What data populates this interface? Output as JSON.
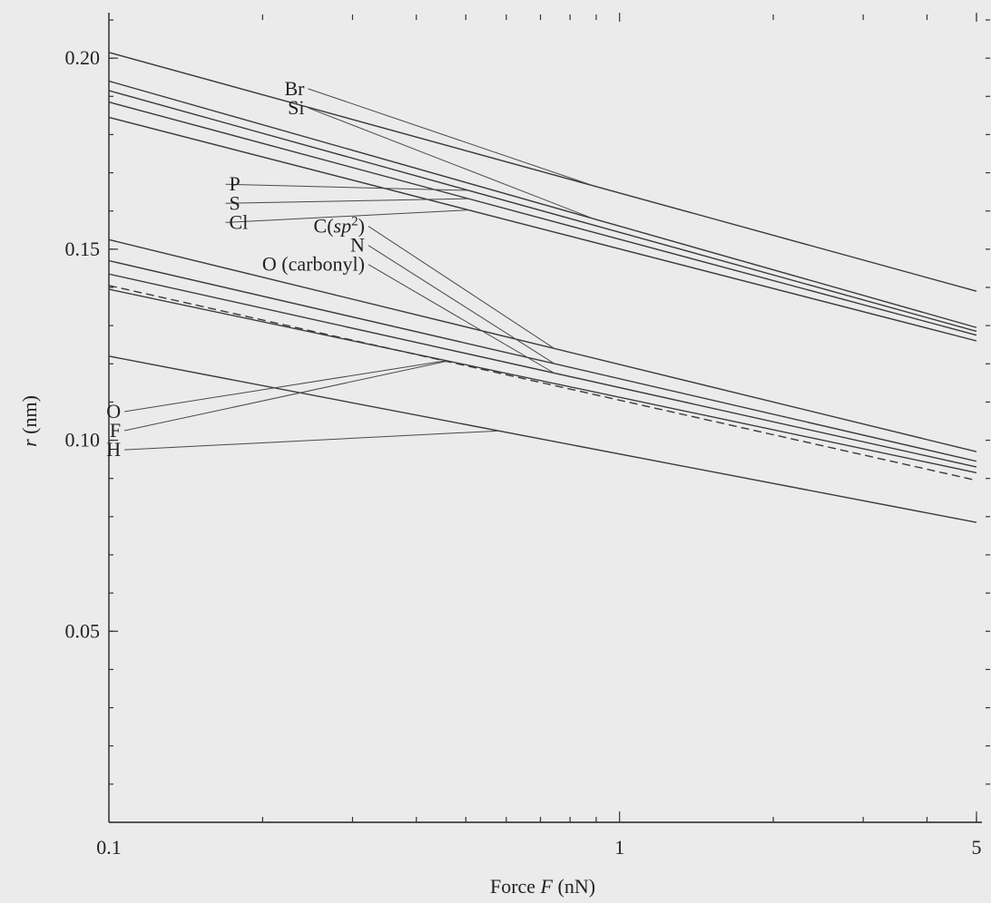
{
  "chart_data": {
    "type": "line",
    "x_scale": "log",
    "xlabel_parts": [
      "Force ",
      "F",
      " (nN)"
    ],
    "ylabel_parts": [
      "r",
      " (nm)"
    ],
    "xlim": [
      0.1,
      5
    ],
    "ylim": [
      0.0,
      0.21
    ],
    "x_ticks": [
      0.1,
      1,
      5
    ],
    "x_tick_labels": [
      "0.1",
      "1",
      "5"
    ],
    "y_ticks": [
      0.05,
      0.1,
      0.15,
      0.2
    ],
    "y_tick_labels": [
      "0.05",
      "0.10",
      "0.15",
      "0.20"
    ],
    "y_minor_step": 0.01,
    "grid": false,
    "legend": "none",
    "series": [
      {
        "name": "Br",
        "x": [
          0.1,
          5
        ],
        "values": [
          0.2015,
          0.139
        ],
        "style": "solid"
      },
      {
        "name": "Si",
        "x": [
          0.1,
          5
        ],
        "values": [
          0.194,
          0.1295
        ],
        "style": "solid"
      },
      {
        "name": "P",
        "x": [
          0.1,
          5
        ],
        "values": [
          0.1915,
          0.1285
        ],
        "style": "solid"
      },
      {
        "name": "S",
        "x": [
          0.1,
          5
        ],
        "values": [
          0.1885,
          0.1275
        ],
        "style": "solid"
      },
      {
        "name": "Cl",
        "x": [
          0.1,
          5
        ],
        "values": [
          0.1845,
          0.126
        ],
        "style": "solid"
      },
      {
        "name": "C(sp2)",
        "x": [
          0.1,
          5
        ],
        "values": [
          0.1525,
          0.097
        ],
        "style": "solid"
      },
      {
        "name": "N",
        "x": [
          0.1,
          5
        ],
        "values": [
          0.147,
          0.0945
        ],
        "style": "solid"
      },
      {
        "name": "O (carbonyl)",
        "x": [
          0.1,
          5
        ],
        "values": [
          0.1435,
          0.093
        ],
        "style": "solid"
      },
      {
        "name": "O",
        "x": [
          0.1,
          5
        ],
        "values": [
          0.1395,
          0.0915
        ],
        "style": "solid"
      },
      {
        "name": "F",
        "x": [
          0.1,
          5
        ],
        "values": [
          0.1405,
          0.0895
        ],
        "style": "dashed"
      },
      {
        "name": "H",
        "x": [
          0.1,
          5
        ],
        "values": [
          0.122,
          0.0785
        ],
        "style": "solid"
      }
    ],
    "annotations": [
      {
        "parts": [
          {
            "t": "Br"
          }
        ],
        "anchor": "end",
        "at": [
          0.2415,
          0.192
        ],
        "targets": [
          {
            "series": 0,
            "x": 0.89
          }
        ]
      },
      {
        "parts": [
          {
            "t": "Si"
          }
        ],
        "anchor": "end",
        "at": [
          0.2415,
          0.187
        ],
        "targets": [
          {
            "series": 1,
            "x": 0.89
          }
        ]
      },
      {
        "parts": [
          {
            "t": "P"
          }
        ],
        "anchor": "start",
        "at": [
          0.172,
          0.167
        ],
        "targets": [
          {
            "series": 2,
            "x": 0.506
          }
        ]
      },
      {
        "parts": [
          {
            "t": "S"
          }
        ],
        "anchor": "start",
        "at": [
          0.172,
          0.162
        ],
        "targets": [
          {
            "series": 3,
            "x": 0.506
          }
        ]
      },
      {
        "parts": [
          {
            "t": "Cl"
          }
        ],
        "anchor": "start",
        "at": [
          0.172,
          0.157
        ],
        "targets": [
          {
            "series": 4,
            "x": 0.506
          }
        ]
      },
      {
        "parts": [
          {
            "t": "C("
          },
          {
            "t": "sp",
            "i": true
          },
          {
            "t": "2",
            "sup": true
          },
          {
            "t": ")"
          }
        ],
        "anchor": "end",
        "at": [
          0.317,
          0.156
        ],
        "targets": [
          {
            "series": 5,
            "x": 0.745
          }
        ]
      },
      {
        "parts": [
          {
            "t": "N"
          }
        ],
        "anchor": "end",
        "at": [
          0.317,
          0.151
        ],
        "targets": [
          {
            "series": 6,
            "x": 0.745
          }
        ]
      },
      {
        "parts": [
          {
            "t": "O (carbonyl)"
          }
        ],
        "anchor": "end",
        "at": [
          0.317,
          0.146
        ],
        "targets": [
          {
            "series": 7,
            "x": 0.745
          }
        ]
      },
      {
        "parts": [
          {
            "t": "O"
          }
        ],
        "anchor": "end",
        "at": [
          0.1055,
          0.1075
        ],
        "targets": [
          {
            "series": 8,
            "x": 0.458
          }
        ]
      },
      {
        "parts": [
          {
            "t": "F"
          }
        ],
        "anchor": "end",
        "at": [
          0.1055,
          0.1025
        ],
        "targets": [
          {
            "series": 9,
            "x": 0.458
          }
        ]
      },
      {
        "parts": [
          {
            "t": "H"
          }
        ],
        "anchor": "end",
        "at": [
          0.1055,
          0.0975
        ],
        "targets": [
          {
            "series": 10,
            "x": 0.58
          }
        ]
      }
    ]
  }
}
